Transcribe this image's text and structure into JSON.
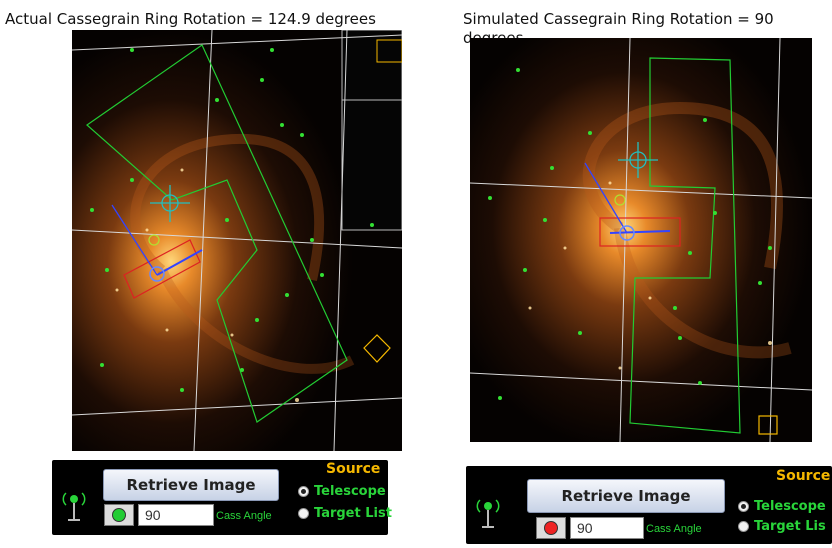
{
  "captions": {
    "left": "Actual Cassegrain Ring Rotation = 124.9 degrees",
    "right_line1": "Simulated Cassegrain Ring Rotation = 90",
    "right_line2": "degrees"
  },
  "left_panel": {
    "button_label": "Retrieve Image",
    "source_label": "Source",
    "radio_telescope": "Telescope",
    "radio_target_list": "Target List",
    "angle_value": "90",
    "angle_label": "Cass Angle",
    "status_led_color": "#22cc33",
    "selected_source": "Telescope"
  },
  "right_panel": {
    "button_label": "Retrieve Image",
    "source_label": "Source",
    "radio_telescope": "Telescope",
    "radio_target_list": "Target Lis",
    "angle_value": "90",
    "angle_label": "Cass Angle",
    "status_led_color": "#ee2222",
    "selected_source": "Telescope"
  },
  "colors": {
    "overlay_green": "#22cc33",
    "overlay_yellow": "#f5b800",
    "overlay_red": "#dd2222",
    "overlay_blue": "#3344ff",
    "label_green": "#29d43a"
  }
}
